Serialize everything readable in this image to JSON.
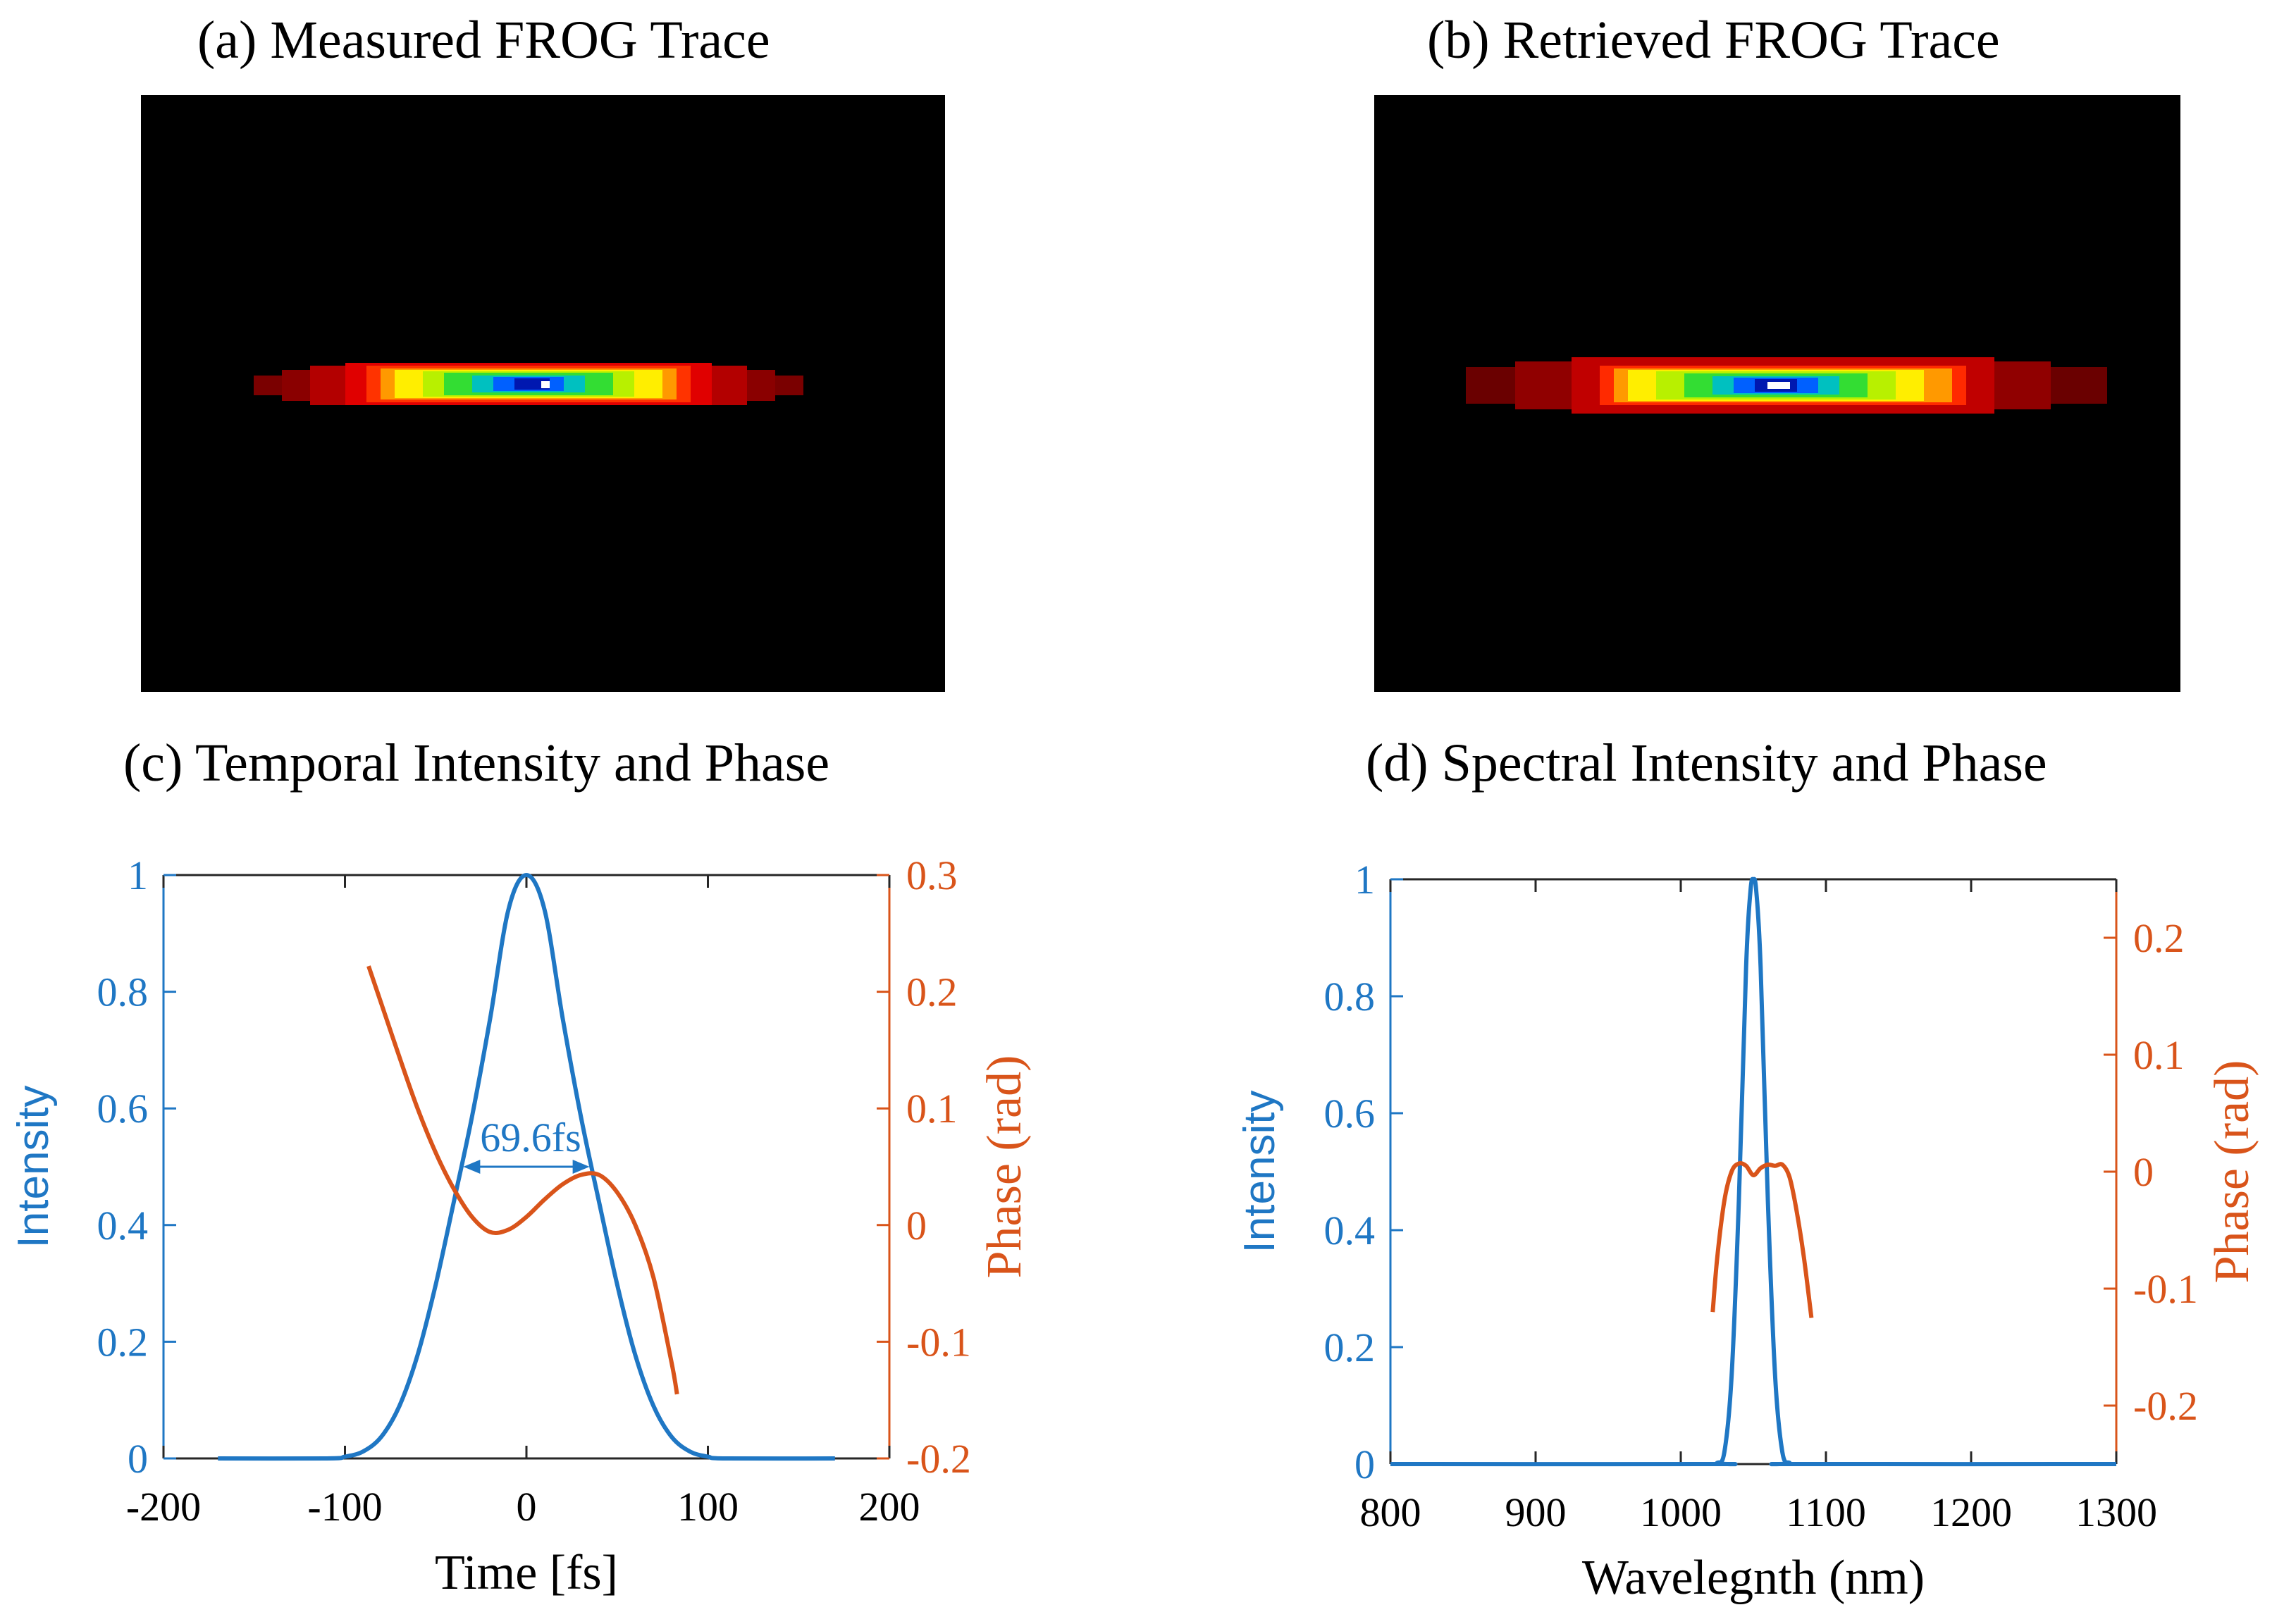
{
  "colors": {
    "intensity": "#1f77c4",
    "phase": "#d9541a",
    "axis": "#262626",
    "frog_bg": "#000000"
  },
  "panels": {
    "a": {
      "title": "(a)  Measured FROG Trace"
    },
    "b": {
      "title": "(b)  Retrieved FROG Trace"
    },
    "c": {
      "title": "(c) Temporal Intensity and Phase"
    },
    "d": {
      "title": "(d) Spectral Intensity and Phase"
    }
  },
  "chart_data": [
    {
      "id": "c",
      "type": "line",
      "title": "(c) Temporal Intensity and Phase",
      "xlabel": "Time [fs]",
      "ylabel": "Intensity",
      "ylabel_right": "Phase (rad)",
      "xlim": [
        -200,
        200
      ],
      "ylim": [
        0,
        1
      ],
      "ylim_right": [
        -0.2,
        0.3
      ],
      "xticks": [
        -200,
        -100,
        0,
        100,
        200
      ],
      "xtick_labels": [
        "-200",
        "-100",
        "0",
        "100",
        "200"
      ],
      "yticks": [
        0,
        0.2,
        0.4,
        0.6,
        0.8,
        1
      ],
      "ytick_labels": [
        "0",
        "0.2",
        "0.4",
        "0.6",
        "0.8",
        "1"
      ],
      "yticks_right": [
        -0.2,
        -0.1,
        0,
        0.1,
        0.2,
        0.3
      ],
      "ytick_right_labels": [
        "-0.2",
        "-0.1",
        "0",
        "0.1",
        "0.2",
        "0.3"
      ],
      "annotation": {
        "text": "69.6fs",
        "x_from": -34.8,
        "x_to": 34.8,
        "y": 0.5
      },
      "series": [
        {
          "name": "Intensity",
          "axis": "left",
          "x": [
            -170,
            -110,
            -100,
            -90,
            -80,
            -70,
            -60,
            -50,
            -40,
            -30,
            -20,
            -10,
            0,
            10,
            20,
            30,
            40,
            50,
            60,
            70,
            80,
            90,
            100,
            110,
            170
          ],
          "y": [
            0,
            0,
            0.003,
            0.012,
            0.037,
            0.09,
            0.177,
            0.298,
            0.44,
            0.586,
            0.754,
            0.94,
            1.0,
            0.94,
            0.754,
            0.586,
            0.44,
            0.298,
            0.177,
            0.09,
            0.037,
            0.012,
            0.003,
            0,
            0
          ]
        },
        {
          "name": "Phase",
          "axis": "right",
          "x": [
            -87,
            -80,
            -70,
            -60,
            -50,
            -40,
            -30,
            -20,
            -10,
            0,
            10,
            20,
            30,
            40,
            50,
            60,
            70,
            80,
            83
          ],
          "y": [
            0.222,
            0.19,
            0.144,
            0.1,
            0.062,
            0.031,
            0.007,
            -0.006,
            -0.004,
            0.007,
            0.022,
            0.035,
            0.043,
            0.043,
            0.028,
            0.0,
            -0.045,
            -0.118,
            -0.145
          ]
        }
      ]
    },
    {
      "id": "d",
      "type": "line",
      "title": "(d) Spectral Intensity and Phase",
      "xlabel": "Wavelegnth (nm)",
      "ylabel": "Intensity",
      "ylabel_right": "Phase (rad)",
      "xlim": [
        800,
        1300
      ],
      "ylim": [
        0,
        1
      ],
      "ylim_right": [
        -0.25,
        0.25
      ],
      "xticks": [
        800,
        900,
        1000,
        1100,
        1200,
        1300
      ],
      "xtick_labels": [
        "800",
        "900",
        "1000",
        "1100",
        "1200",
        "1300"
      ],
      "yticks": [
        0,
        0.2,
        0.4,
        0.6,
        0.8,
        1
      ],
      "ytick_labels": [
        "0",
        "0.2",
        "0.4",
        "0.6",
        "0.8",
        "1"
      ],
      "yticks_right": [
        -0.2,
        -0.1,
        0,
        0.1,
        0.2
      ],
      "ytick_right_labels": [
        "-0.2",
        "-0.1",
        "0",
        "0.1",
        "0.2"
      ],
      "series": [
        {
          "name": "Intensity",
          "axis": "left",
          "x": [
            800,
            1020,
            1025,
            1030,
            1035,
            1040,
            1045,
            1048,
            1050,
            1052,
            1055,
            1060,
            1065,
            1070,
            1075,
            1080,
            1300
          ],
          "y": [
            0,
            0,
            0.002,
            0.02,
            0.15,
            0.45,
            0.85,
            0.98,
            1.0,
            0.98,
            0.85,
            0.45,
            0.15,
            0.02,
            0.002,
            0,
            0
          ]
        },
        {
          "name": "Phase",
          "axis": "right",
          "x": [
            1022,
            1025,
            1030,
            1035,
            1040,
            1045,
            1050,
            1055,
            1060,
            1065,
            1070,
            1075,
            1080,
            1085,
            1090
          ],
          "y": [
            -0.12,
            -0.075,
            -0.025,
            0.0,
            0.007,
            0.005,
            -0.003,
            0.003,
            0.006,
            0.005,
            0.006,
            -0.005,
            -0.035,
            -0.075,
            -0.125
          ]
        }
      ]
    }
  ]
}
